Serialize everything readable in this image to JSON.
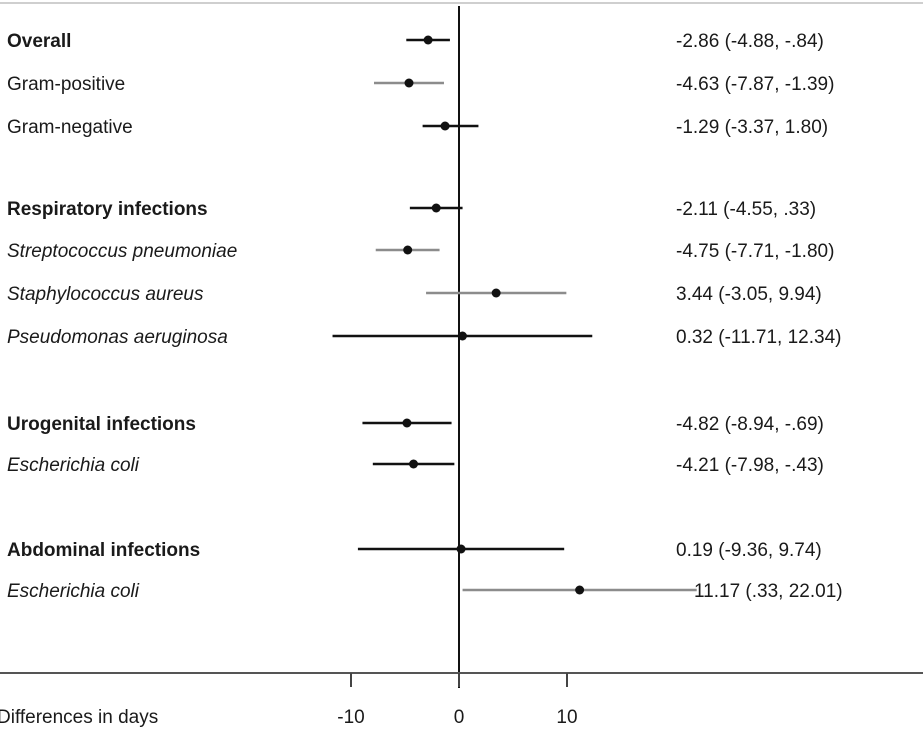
{
  "chart_data": {
    "type": "forest",
    "xlabel": "Differences in days",
    "xlim": [
      -14,
      22
    ],
    "x_ticks": [
      -10,
      0,
      10
    ],
    "x_tick_labels": [
      "-10",
      "0",
      "10"
    ],
    "reference_line": 0,
    "colors": {
      "black": "#111111",
      "gray": "#8c8c8c"
    },
    "rows": [
      {
        "label": "Overall",
        "style": "bold",
        "estimate": -2.86,
        "lower": -4.88,
        "upper": -0.84,
        "text": "-2.86 (-4.88, -.84)",
        "color": "black"
      },
      {
        "label": "Gram-positive",
        "style": "normal",
        "estimate": -4.63,
        "lower": -7.87,
        "upper": -1.39,
        "text": "-4.63 (-7.87, -1.39)",
        "color": "gray"
      },
      {
        "label": "Gram-negative",
        "style": "normal",
        "estimate": -1.29,
        "lower": -3.37,
        "upper": 1.8,
        "text": "-1.29 (-3.37, 1.80)",
        "color": "black"
      },
      {
        "label": "Respiratory infections",
        "style": "bold",
        "estimate": -2.11,
        "lower": -4.55,
        "upper": 0.33,
        "text": "-2.11 (-4.55, .33)",
        "color": "black"
      },
      {
        "label": "Streptococcus pneumoniae",
        "style": "italic",
        "estimate": -4.75,
        "lower": -7.71,
        "upper": -1.8,
        "text": "-4.75 (-7.71, -1.80)",
        "color": "gray"
      },
      {
        "label": "Staphylococcus aureus",
        "style": "italic",
        "estimate": 3.44,
        "lower": -3.05,
        "upper": 9.94,
        "text": "3.44 (-3.05, 9.94)",
        "color": "gray"
      },
      {
        "label": "Pseudomonas aeruginosa",
        "style": "italic",
        "estimate": 0.32,
        "lower": -11.71,
        "upper": 12.34,
        "text": "0.32 (-11.71, 12.34)",
        "color": "black"
      },
      {
        "label": "Urogenital infections",
        "style": "bold",
        "estimate": -4.82,
        "lower": -8.94,
        "upper": -0.69,
        "text": "-4.82 (-8.94, -.69)",
        "color": "black"
      },
      {
        "label": "Escherichia coli",
        "style": "italic",
        "estimate": -4.21,
        "lower": -7.98,
        "upper": -0.43,
        "text": "-4.21 (-7.98, -.43)",
        "color": "black"
      },
      {
        "label": "Abdominal infections",
        "style": "bold",
        "estimate": 0.19,
        "lower": -9.36,
        "upper": 9.74,
        "text": "0.19 (-9.36, 9.74)",
        "color": "black"
      },
      {
        "label": "Escherichia coli",
        "style": "italic",
        "estimate": 11.17,
        "lower": 0.33,
        "upper": 22.01,
        "text": "11.17 (.33, 22.01)",
        "color": "gray"
      }
    ]
  }
}
